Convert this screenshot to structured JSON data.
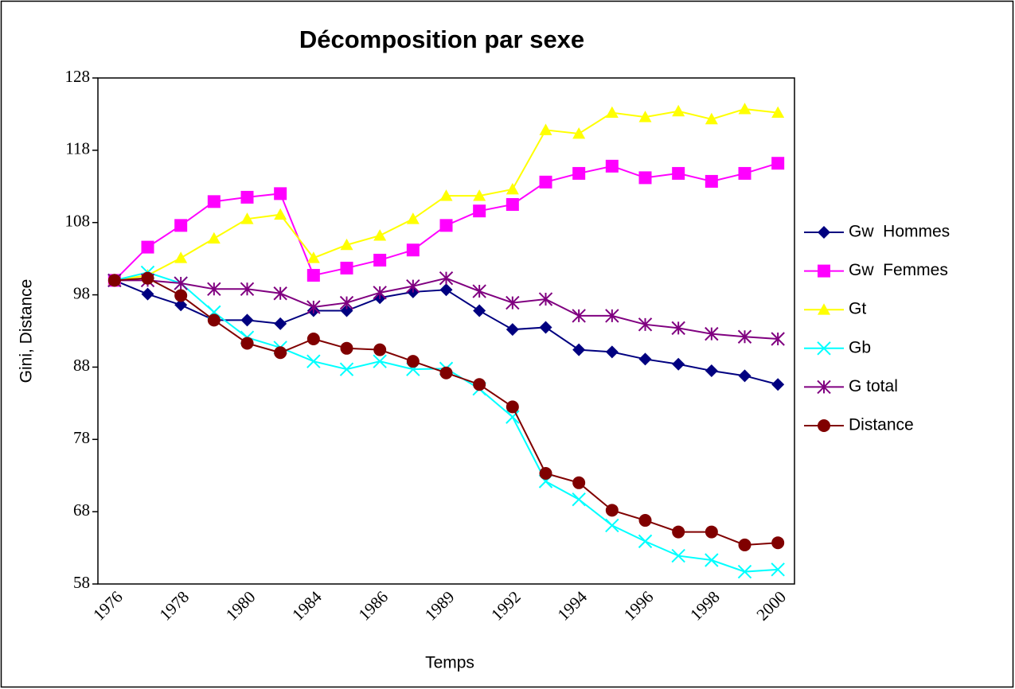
{
  "chart_data": {
    "type": "line",
    "title": "Décomposition par sexe",
    "xlabel": "Temps",
    "ylabel": "Gini, Distance",
    "categories": [
      "1976",
      null,
      "1978",
      null,
      "1980",
      null,
      "1984",
      null,
      "1986",
      null,
      "1989",
      null,
      "1992",
      null,
      "1994",
      null,
      "1996",
      null,
      "1998",
      null,
      "2000"
    ],
    "ylim": [
      58,
      128
    ],
    "yticks": [
      58,
      68,
      78,
      88,
      98,
      108,
      118,
      128
    ],
    "legend": "right",
    "series": [
      {
        "name": "Gw  Hommes",
        "color": "#000080",
        "marker": "diamond",
        "values": [
          100,
          98.1,
          96.6,
          94.5,
          94.5,
          94.0,
          95.8,
          95.8,
          97.6,
          98.4,
          98.7,
          95.8,
          93.2,
          93.5,
          90.4,
          90.1,
          89.1,
          88.4,
          87.5,
          86.8,
          85.6
        ]
      },
      {
        "name": "Gw  Femmes",
        "color": "#ff00ff",
        "marker": "square",
        "values": [
          100,
          104.6,
          107.6,
          110.9,
          111.5,
          112.0,
          100.7,
          101.7,
          102.8,
          104.2,
          107.6,
          109.6,
          110.5,
          113.6,
          114.8,
          115.8,
          114.2,
          114.8,
          113.7,
          114.8,
          116.2
        ]
      },
      {
        "name": "Gt",
        "color": "#ffff00",
        "marker": "triangle",
        "values": [
          100,
          100.7,
          103.1,
          105.8,
          108.5,
          109.1,
          103.1,
          104.9,
          106.2,
          108.5,
          111.7,
          111.7,
          112.6,
          120.8,
          120.3,
          123.2,
          122.6,
          123.4,
          122.3,
          123.7,
          123.2
        ]
      },
      {
        "name": "Gb",
        "color": "#00ffff",
        "marker": "x",
        "values": [
          100,
          101.1,
          99.6,
          95.6,
          92.1,
          90.7,
          88.8,
          87.7,
          88.8,
          87.7,
          87.8,
          85.0,
          81.1,
          72.2,
          69.7,
          66.1,
          63.9,
          61.9,
          61.3,
          59.7,
          60.0
        ]
      },
      {
        "name": "G total",
        "color": "#800080",
        "marker": "star",
        "values": [
          100,
          100,
          99.6,
          98.8,
          98.8,
          98.2,
          96.3,
          96.9,
          98.3,
          99.2,
          100.3,
          98.5,
          96.9,
          97.4,
          95.1,
          95.1,
          93.9,
          93.4,
          92.6,
          92.2,
          91.9
        ]
      },
      {
        "name": "Distance",
        "color": "#800000",
        "marker": "circle",
        "values": [
          100,
          100.3,
          97.9,
          94.5,
          91.3,
          90.0,
          91.9,
          90.6,
          90.4,
          88.8,
          87.2,
          85.6,
          82.5,
          73.3,
          72.0,
          68.2,
          66.8,
          65.2,
          65.2,
          63.4,
          63.7
        ]
      }
    ]
  }
}
